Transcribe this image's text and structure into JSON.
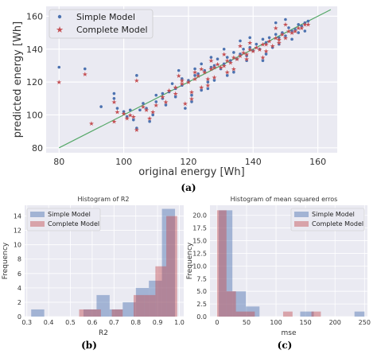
{
  "colors": {
    "panel_bg": "#eaeaf2",
    "grid": "#ffffff",
    "simple": "#4c72b0",
    "complete": "#c44e52",
    "ideal_line": "#55a868"
  },
  "captions": {
    "a": "(a)",
    "b": "(b)",
    "c": "(c)"
  },
  "chart_data": [
    {
      "id": "a",
      "type": "scatter",
      "title": "",
      "xlabel": "original energy [Wh]",
      "ylabel": "predicted energy [Wh]",
      "xlim": [
        76,
        166
      ],
      "ylim": [
        77,
        166
      ],
      "xticks": [
        80,
        100,
        120,
        140,
        160
      ],
      "yticks": [
        80,
        100,
        120,
        140,
        160
      ],
      "grid": true,
      "legend": "top-left",
      "legend_entries": [
        "Simple Model",
        "Complete Model"
      ],
      "reference_line": {
        "x": [
          80,
          164
        ],
        "y": [
          80,
          164
        ]
      },
      "series": [
        {
          "name": "Simple Model",
          "marker": "dot",
          "points": [
            [
              80,
              129
            ],
            [
              88,
              128
            ],
            [
              97,
              113
            ],
            [
              97,
              110
            ],
            [
              93,
              105
            ],
            [
              98,
              104
            ],
            [
              100,
              102
            ],
            [
              102,
              103
            ],
            [
              104,
              124
            ],
            [
              104,
              92
            ],
            [
              106,
              107
            ],
            [
              108,
              96
            ],
            [
              110,
              108
            ],
            [
              112,
              110
            ],
            [
              114,
              114
            ],
            [
              116,
              116
            ],
            [
              117,
              127
            ],
            [
              118,
              118
            ],
            [
              120,
              121
            ],
            [
              121,
              112
            ],
            [
              122,
              124
            ],
            [
              123,
              125
            ],
            [
              124,
              131
            ],
            [
              125,
              127
            ],
            [
              126,
              120
            ],
            [
              127,
              129
            ],
            [
              128,
              130
            ],
            [
              129,
              134
            ],
            [
              130,
              128
            ],
            [
              131,
              131
            ],
            [
              132,
              135
            ],
            [
              133,
              133
            ],
            [
              134,
              138
            ],
            [
              135,
              134
            ],
            [
              136,
              137
            ],
            [
              137,
              140
            ],
            [
              138,
              136
            ],
            [
              139,
              141
            ],
            [
              140,
              139
            ],
            [
              141,
              143
            ],
            [
              142,
              140
            ],
            [
              143,
              146
            ],
            [
              144,
              144
            ],
            [
              145,
              147
            ],
            [
              146,
              141
            ],
            [
              147,
              149
            ],
            [
              148,
              147
            ],
            [
              149,
              150
            ],
            [
              150,
              148
            ],
            [
              151,
              153
            ],
            [
              152,
              151
            ],
            [
              153,
              152
            ],
            [
              154,
              155
            ],
            [
              155,
              154
            ],
            [
              156,
              156
            ],
            [
              157,
              157
            ],
            [
              119,
              104
            ],
            [
              121,
              108
            ],
            [
              127,
              135
            ],
            [
              132,
              124
            ],
            [
              139,
              147
            ],
            [
              144,
              137
            ],
            [
              147,
              156
            ],
            [
              150,
              158
            ],
            [
              136,
              145
            ],
            [
              128,
              121
            ],
            [
              116,
              111
            ],
            [
              113,
              106
            ],
            [
              109,
              100
            ],
            [
              107,
              104
            ],
            [
              103,
              97
            ],
            [
              101,
              99
            ],
            [
              124,
              115
            ],
            [
              131,
              140
            ],
            [
              143,
              133
            ],
            [
              148,
              143
            ],
            [
              138,
              133
            ],
            [
              134,
              126
            ],
            [
              126,
              116
            ],
            [
              122,
              128
            ],
            [
              118,
              122
            ],
            [
              115,
              119
            ],
            [
              112,
              113
            ],
            [
              110,
              112
            ],
            [
              105,
              103
            ],
            [
              154,
              150
            ],
            [
              152,
              146
            ],
            [
              156,
              151
            ]
          ]
        },
        {
          "name": "Complete Model",
          "marker": "star",
          "points": [
            [
              80,
              120
            ],
            [
              88,
              125
            ],
            [
              90,
              95
            ],
            [
              97,
              96
            ],
            [
              97,
              108
            ],
            [
              98,
              102
            ],
            [
              100,
              101
            ],
            [
              102,
              100
            ],
            [
              104,
              121
            ],
            [
              104,
              91
            ],
            [
              106,
              105
            ],
            [
              108,
              98
            ],
            [
              110,
              106
            ],
            [
              112,
              111
            ],
            [
              114,
              115
            ],
            [
              116,
              117
            ],
            [
              117,
              124
            ],
            [
              118,
              119
            ],
            [
              120,
              120
            ],
            [
              121,
              114
            ],
            [
              122,
              122
            ],
            [
              123,
              124
            ],
            [
              124,
              128
            ],
            [
              125,
              126
            ],
            [
              126,
              122
            ],
            [
              127,
              128
            ],
            [
              128,
              129
            ],
            [
              129,
              131
            ],
            [
              130,
              129
            ],
            [
              131,
              130
            ],
            [
              132,
              133
            ],
            [
              133,
              132
            ],
            [
              134,
              135
            ],
            [
              135,
              134
            ],
            [
              136,
              136
            ],
            [
              137,
              138
            ],
            [
              138,
              137
            ],
            [
              139,
              140
            ],
            [
              140,
              139
            ],
            [
              141,
              141
            ],
            [
              142,
              140
            ],
            [
              143,
              143
            ],
            [
              144,
              143
            ],
            [
              145,
              145
            ],
            [
              146,
              142
            ],
            [
              147,
              147
            ],
            [
              148,
              146
            ],
            [
              149,
              149
            ],
            [
              150,
              147
            ],
            [
              151,
              151
            ],
            [
              152,
              150
            ],
            [
              153,
              151
            ],
            [
              154,
              153
            ],
            [
              155,
              153
            ],
            [
              156,
              155
            ],
            [
              157,
              155
            ],
            [
              119,
              107
            ],
            [
              121,
              110
            ],
            [
              127,
              133
            ],
            [
              132,
              126
            ],
            [
              139,
              144
            ],
            [
              144,
              139
            ],
            [
              147,
              153
            ],
            [
              150,
              155
            ],
            [
              136,
              142
            ],
            [
              128,
              123
            ],
            [
              116,
              113
            ],
            [
              113,
              108
            ],
            [
              109,
              102
            ],
            [
              107,
              103
            ],
            [
              103,
              99
            ],
            [
              101,
              98
            ],
            [
              124,
              117
            ],
            [
              131,
              137
            ],
            [
              143,
              135
            ],
            [
              148,
              144
            ],
            [
              138,
              134
            ],
            [
              134,
              128
            ],
            [
              126,
              118
            ],
            [
              122,
              126
            ],
            [
              118,
              121
            ]
          ]
        }
      ]
    },
    {
      "id": "b",
      "type": "bar",
      "subtype": "histogram",
      "title": "Histogram of R2",
      "xlabel": "R2",
      "ylabel": "Frequency",
      "xlim": [
        0.29,
        1.02
      ],
      "ylim": [
        0,
        15.5
      ],
      "xticks": [
        0.3,
        0.4,
        0.5,
        0.6,
        0.7,
        0.8,
        0.9,
        1.0
      ],
      "xtick_labels": [
        "0.3",
        "0.4",
        "0.5",
        "0.6",
        "0.7",
        "0.8",
        "0.9",
        "1.0"
      ],
      "yticks": [
        0,
        2,
        4,
        6,
        8,
        10,
        12,
        14
      ],
      "grid": true,
      "legend": "top-left",
      "legend_entries": [
        "Simple Model",
        "Complete Model"
      ],
      "series": [
        {
          "name": "Simple Model",
          "bins": [
            [
              0.32,
              0.38,
              1
            ],
            [
              0.38,
              0.44,
              0
            ],
            [
              0.44,
              0.5,
              0
            ],
            [
              0.5,
              0.56,
              0
            ],
            [
              0.56,
              0.62,
              1
            ],
            [
              0.62,
              0.68,
              3
            ],
            [
              0.68,
              0.74,
              1
            ],
            [
              0.74,
              0.8,
              2
            ],
            [
              0.8,
              0.86,
              4
            ],
            [
              0.86,
              0.92,
              5
            ],
            [
              0.92,
              0.98,
              15
            ]
          ]
        },
        {
          "name": "Complete Model",
          "bins": [
            [
              0.54,
              0.59,
              1
            ],
            [
              0.59,
              0.64,
              1
            ],
            [
              0.64,
              0.69,
              0
            ],
            [
              0.69,
              0.74,
              1
            ],
            [
              0.74,
              0.79,
              0
            ],
            [
              0.79,
              0.84,
              3
            ],
            [
              0.84,
              0.89,
              3
            ],
            [
              0.89,
              0.94,
              7
            ],
            [
              0.94,
              0.99,
              14
            ]
          ]
        }
      ]
    },
    {
      "id": "c",
      "type": "bar",
      "subtype": "histogram",
      "title": "Histogram of mean squared erros",
      "xlabel": "mse",
      "ylabel": "Frequency",
      "xlim": [
        -12,
        255
      ],
      "ylim": [
        0,
        22
      ],
      "xticks": [
        0,
        50,
        100,
        150,
        200,
        250
      ],
      "xtick_labels": [
        "0",
        "50",
        "100",
        "150",
        "200",
        "250"
      ],
      "yticks": [
        0.0,
        2.5,
        5.0,
        7.5,
        10.0,
        12.5,
        15.0,
        17.5,
        20.0
      ],
      "ytick_labels": [
        "0.0",
        "2.5",
        "5.0",
        "7.5",
        "10.0",
        "12.5",
        "15.0",
        "17.5",
        "20.0"
      ],
      "grid": true,
      "legend": "top-right",
      "legend_entries": [
        "Simple Model",
        "Complete Model"
      ],
      "series": [
        {
          "name": "Simple Model",
          "bins": [
            [
              3,
              26,
              21
            ],
            [
              26,
              49,
              5
            ],
            [
              49,
              72,
              2
            ],
            [
              72,
              95,
              0
            ],
            [
              95,
              118,
              0
            ],
            [
              118,
              141,
              0
            ],
            [
              141,
              164,
              1
            ],
            [
              164,
              187,
              0
            ],
            [
              187,
              210,
              0
            ],
            [
              210,
              233,
              0
            ],
            [
              233,
              250,
              1
            ]
          ]
        },
        {
          "name": "Complete Model",
          "bins": [
            [
              0,
              16,
              21
            ],
            [
              16,
              32,
              5
            ],
            [
              32,
              48,
              1
            ],
            [
              48,
              64,
              1
            ],
            [
              64,
              80,
              0
            ],
            [
              80,
              96,
              0
            ],
            [
              96,
              112,
              0
            ],
            [
              112,
              128,
              1
            ],
            [
              128,
              144,
              0
            ],
            [
              144,
              160,
              0
            ],
            [
              160,
              176,
              1
            ]
          ]
        }
      ]
    }
  ]
}
